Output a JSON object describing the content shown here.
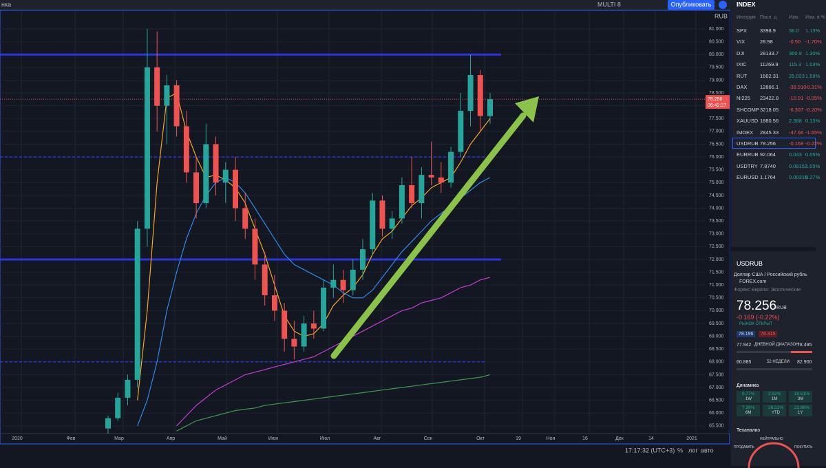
{
  "chart_data": {
    "type": "candlestick",
    "currency": "RUB",
    "last_label": "78.256",
    "timer": "06:42:27",
    "ylim": [
      65.2,
      81.7
    ],
    "yticks": [
      {
        "value": 65.5,
        "label": "65.500"
      },
      {
        "value": 66,
        "label": "66.000"
      },
      {
        "value": 66.5,
        "label": "66.500"
      },
      {
        "value": 67,
        "label": "67.000"
      },
      {
        "value": 67.5,
        "label": "67.500"
      },
      {
        "value": 68,
        "label": "68.000"
      },
      {
        "value": 68.5,
        "label": "68.500"
      },
      {
        "value": 69,
        "label": "69.000"
      },
      {
        "value": 69.5,
        "label": "69.500"
      },
      {
        "value": 70,
        "label": "70.000"
      },
      {
        "value": 70.5,
        "label": "70.500"
      },
      {
        "value": 71,
        "label": "71.000"
      },
      {
        "value": 71.5,
        "label": "71.500"
      },
      {
        "value": 72,
        "label": "72.000"
      },
      {
        "value": 72.5,
        "label": "72.500"
      },
      {
        "value": 73,
        "label": "73.000"
      },
      {
        "value": 73.5,
        "label": "73.500"
      },
      {
        "value": 74,
        "label": "74.000"
      },
      {
        "value": 74.5,
        "label": "74.500"
      },
      {
        "value": 75,
        "label": "75.000"
      },
      {
        "value": 75.5,
        "label": "75.500"
      },
      {
        "value": 76,
        "label": "76.000"
      },
      {
        "value": 76.5,
        "label": "76.500"
      },
      {
        "value": 77,
        "label": "77.000"
      },
      {
        "value": 77.5,
        "label": "77.500"
      },
      {
        "value": 78,
        "label": "78.000"
      },
      {
        "value": 78.5,
        "label": "78.500"
      },
      {
        "value": 79,
        "label": "79.000"
      },
      {
        "value": 79.5,
        "label": "79.500"
      },
      {
        "value": 80,
        "label": "80.000"
      },
      {
        "value": 80.5,
        "label": "80.500"
      },
      {
        "value": 81,
        "label": "81.000"
      }
    ],
    "xlabels": [
      "2020",
      "Фев",
      "Мар",
      "Апр",
      "Май",
      "Июн",
      "Июл",
      "Авг",
      "Сен",
      "Окт",
      "19",
      "Ноя",
      "16",
      "Дек",
      "14",
      "2021"
    ],
    "up_color": "#26a69a",
    "down_color": "#ef5350",
    "grid": true,
    "candles": {
      "open": [
        65.4,
        65.8,
        66.6,
        67.3,
        73.2,
        79.5,
        78.0,
        78.8,
        77.2,
        75.4,
        74.2,
        76.5,
        75.0,
        75.5,
        74.0,
        73.2,
        71.8,
        70.6,
        70.0,
        68.9,
        68.6,
        69.5,
        69.3,
        70.9,
        71.2,
        70.8,
        71.6,
        72.4,
        74.3,
        73.2,
        73.6,
        74.9,
        74.2,
        75.3,
        75.2,
        75.0,
        76.2,
        77.8,
        79.2,
        77.6
      ],
      "high": [
        65.9,
        66.8,
        67.5,
        73.5,
        81.0,
        80.9,
        79.2,
        79.0,
        77.8,
        76.0,
        77.3,
        76.8,
        75.8,
        76.0,
        74.6,
        73.6,
        72.3,
        71.4,
        70.3,
        69.6,
        69.8,
        70.0,
        71.2,
        71.8,
        71.6,
        72.0,
        72.8,
        74.6,
        74.5,
        73.9,
        75.2,
        76.0,
        75.6,
        76.6,
        75.8,
        76.4,
        78.5,
        80.0,
        79.4,
        78.5
      ],
      "low": [
        65.2,
        65.7,
        66.3,
        67.0,
        72.5,
        77.0,
        76.5,
        76.8,
        75.0,
        73.6,
        74.0,
        74.5,
        74.2,
        73.5,
        72.8,
        71.2,
        70.2,
        69.6,
        68.4,
        68.1,
        68.4,
        68.9,
        69.2,
        70.5,
        70.3,
        70.6,
        71.2,
        72.2,
        72.9,
        72.8,
        73.4,
        74.0,
        73.6,
        74.9,
        74.6,
        74.8,
        76.0,
        77.2,
        77.0,
        77.3
      ],
      "close": [
        65.8,
        66.6,
        67.3,
        73.2,
        79.5,
        78.0,
        78.8,
        77.2,
        75.4,
        74.2,
        76.5,
        75.0,
        75.5,
        74.0,
        73.2,
        71.8,
        70.6,
        70.0,
        68.9,
        68.6,
        69.5,
        69.3,
        70.9,
        71.2,
        70.8,
        71.6,
        72.4,
        74.3,
        73.2,
        73.6,
        74.9,
        74.2,
        75.3,
        75.2,
        75.0,
        76.2,
        77.8,
        79.2,
        77.6,
        78.256
      ]
    },
    "series": [
      {
        "color": "#f5a623",
        "values": [
          null,
          null,
          null,
          66.5,
          70,
          75,
          78.3,
          78.5,
          77,
          76,
          75.2,
          75.3,
          75.1,
          74.8,
          74.2,
          73.2,
          72.2,
          71,
          69.8,
          69.2,
          69,
          69.1,
          69.5,
          70.2,
          70.6,
          70.9,
          71.4,
          72.2,
          72.8,
          73.1,
          73.6,
          74.1,
          74.4,
          74.8,
          75,
          75.2,
          75.8,
          76.5,
          77,
          77.5
        ]
      },
      {
        "color": "#2e8be6",
        "values": [
          null,
          null,
          null,
          65.5,
          66.5,
          68,
          70,
          71.5,
          72.8,
          73.8,
          74.5,
          75,
          75.2,
          75,
          74.6,
          74,
          73.4,
          72.8,
          72.2,
          71.8,
          71.6,
          71.4,
          71.2,
          71,
          70.7,
          70.5,
          70.5,
          70.8,
          71.3,
          71.8,
          72.3,
          72.7,
          73.1,
          73.5,
          73.8,
          74.1,
          74.4,
          74.7,
          75,
          75.2
        ]
      },
      {
        "color": "#c03fd0",
        "values": [
          null,
          null,
          null,
          null,
          null,
          null,
          null,
          65.5,
          65.9,
          66.3,
          66.6,
          66.9,
          67.1,
          67.3,
          67.5,
          67.6,
          67.7,
          67.8,
          67.9,
          68,
          68.1,
          68.2,
          68.4,
          68.6,
          68.8,
          69,
          69.2,
          69.4,
          69.6,
          69.8,
          70,
          70.1,
          70.3,
          70.4,
          70.5,
          70.7,
          70.9,
          71,
          71.2,
          71.3
        ]
      },
      {
        "color": "#3f9a4a",
        "values": [
          null,
          null,
          null,
          null,
          null,
          null,
          null,
          65.3,
          65.5,
          65.7,
          65.8,
          65.9,
          66,
          66.1,
          66.15,
          66.2,
          66.3,
          66.35,
          66.4,
          66.45,
          66.5,
          66.55,
          66.6,
          66.65,
          66.7,
          66.75,
          66.8,
          66.85,
          66.9,
          66.95,
          67,
          67.05,
          67.1,
          67.15,
          67.2,
          67.25,
          67.3,
          67.35,
          67.4,
          67.5
        ]
      }
    ],
    "levels": [
      {
        "value": 80,
        "style": "solid"
      },
      {
        "value": 76,
        "style": "dashed"
      },
      {
        "value": 72,
        "style": "solid"
      },
      {
        "value": 68,
        "style": "dashed"
      }
    ],
    "level_color": "#2a35e0"
  },
  "toolbar": {
    "left": "нка",
    "multi": "MULTI 8",
    "publish": "Опубликовать"
  },
  "bottom": {
    "time": "17:17:32 (UTC+3)",
    "percent": "%",
    "log": "лог",
    "auto": "авто"
  },
  "watchlist": {
    "title": "INDEX",
    "columns": [
      "Инструм",
      "Посл. ц",
      "Изм.",
      "Изм. в %"
    ],
    "rows": [
      [
        "SPX",
        "3398.9",
        "38.0",
        "1.13%"
      ],
      [
        "VIX",
        "28.98",
        "-0.50",
        "-1.70%"
      ],
      [
        "DJI",
        "28133.7",
        "360.9",
        "1.30%"
      ],
      [
        "IXIC",
        "11269.9",
        "115.3",
        "1.03%"
      ],
      [
        "RUT",
        "1602.31",
        "25.023",
        "1.59%"
      ],
      [
        "DAX",
        "12866.1",
        "-39.910",
        "-0.31%"
      ],
      [
        "NI225",
        "23422.8",
        "-10.91",
        "-0.05%"
      ],
      [
        "SHCOMP",
        "3218.05",
        "-6.307",
        "-0.20%"
      ],
      [
        "XAUUSD",
        "1880.56",
        "2.388",
        "0.13%"
      ],
      [
        "IMOEX",
        "2845.33",
        "-47.66",
        "-1.65%"
      ],
      [
        "USDRUB",
        "78.256",
        "-0.169",
        "-0.22%"
      ],
      [
        "EURRUB",
        "92.064",
        "0.043",
        "0.05%"
      ],
      [
        "USDTRY",
        "7.8740",
        "0.08152",
        "1.05%"
      ],
      [
        "EURUSD",
        "1.1764",
        "0.00315",
        "0.27%"
      ]
    ]
  },
  "details": {
    "symbol": "USDRUB",
    "name": "Доллар США / Российский рубль",
    "source": "FOREX.com",
    "market": "Форекс Европа: Экзотические",
    "price": "78.256",
    "currency": "RUB",
    "change": "-0.169 (-0.22%)",
    "status": "РЫНОК ОТКРЫТ",
    "bid": "78.196",
    "ask": "78.315",
    "day_low": "77.942",
    "day_range": "ДНЕВНОЙ ДИАПАЗОН",
    "day_high": "78.485",
    "year_low": "60.885",
    "year_range": "52 НЕДЕЛИ",
    "year_high": "82.900",
    "perf_title": "Динамика",
    "perf": [
      [
        "0.77%",
        "1W"
      ],
      [
        "2.92%",
        "1M"
      ],
      [
        "10.51%",
        "3M"
      ],
      [
        "7.39%",
        "6M"
      ],
      [
        "26.51%",
        "YTD"
      ],
      [
        "22.86%",
        "1Y"
      ]
    ],
    "tech_title": "Теханализ",
    "tech": [
      "НЕЙТРАЛЬНО",
      "ПРОДАВАТЬ",
      "ПОКУПАТЬ"
    ]
  }
}
